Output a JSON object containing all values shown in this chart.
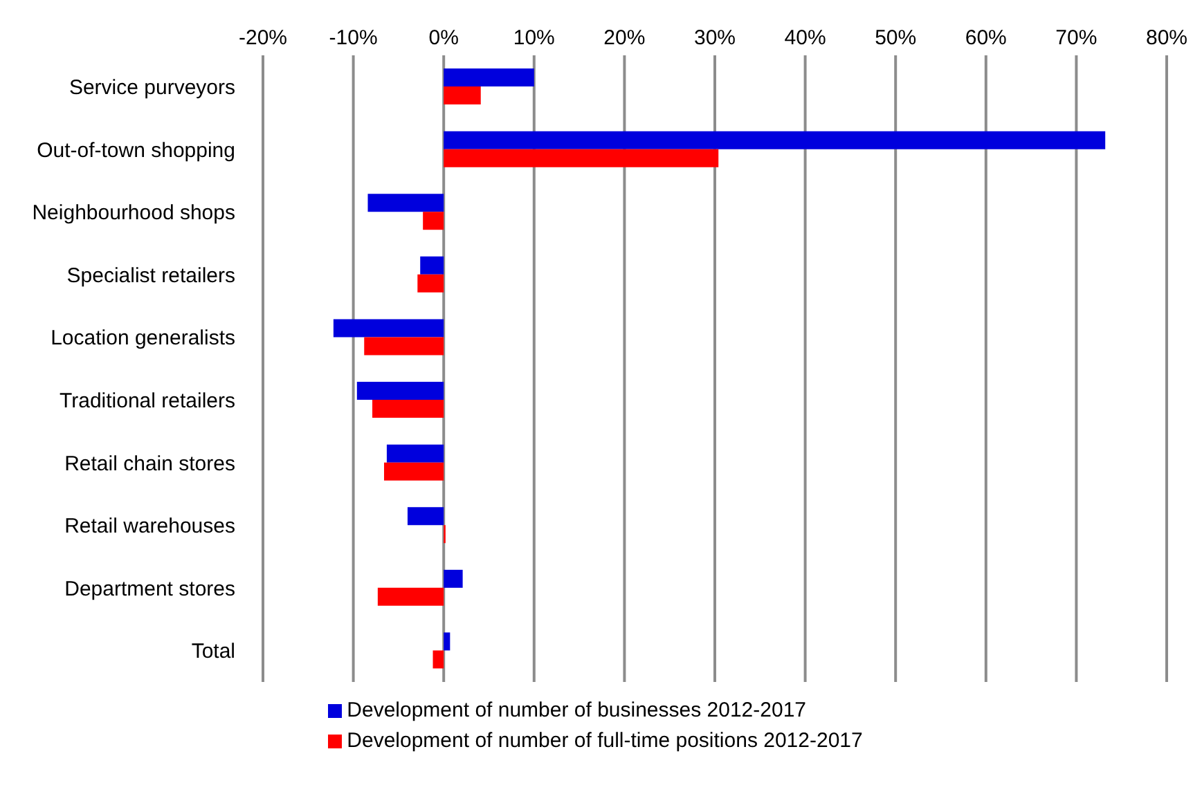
{
  "chart_data": {
    "type": "bar",
    "orientation": "horizontal",
    "categories": [
      "Service purveyors",
      "Out-of-town shopping",
      "Neighbourhood shops",
      "Specialist retailers",
      "Location generalists",
      "Traditional retailers",
      "Retail chain stores",
      "Retail warehouses",
      "Department stores",
      "Total"
    ],
    "series": [
      {
        "name": "Development of number of businesses 2012-2017",
        "color": "#0000dd",
        "values": [
          10.0,
          73.2,
          -8.4,
          -2.6,
          -12.2,
          -9.6,
          -6.3,
          -4.0,
          2.1,
          0.7
        ]
      },
      {
        "name": "Development of number of full-time positions 2012-2017",
        "color": "#ff0000",
        "values": [
          4.1,
          30.4,
          -2.3,
          -2.9,
          -8.8,
          -7.9,
          -6.6,
          0.2,
          -7.3,
          -1.2
        ]
      }
    ],
    "xlim": [
      -20,
      80
    ],
    "xticks": [
      {
        "value": -20,
        "label": "-20%"
      },
      {
        "value": -10,
        "label": "-10%"
      },
      {
        "value": 0,
        "label": "0%"
      },
      {
        "value": 10,
        "label": "10%"
      },
      {
        "value": 20,
        "label": "20%"
      },
      {
        "value": 30,
        "label": "30%"
      },
      {
        "value": 40,
        "label": "40%"
      },
      {
        "value": 50,
        "label": "50%"
      },
      {
        "value": 60,
        "label": "60%"
      },
      {
        "value": 70,
        "label": "70%"
      },
      {
        "value": 80,
        "label": "80%"
      }
    ],
    "grid": "x",
    "legend": "bottom"
  }
}
